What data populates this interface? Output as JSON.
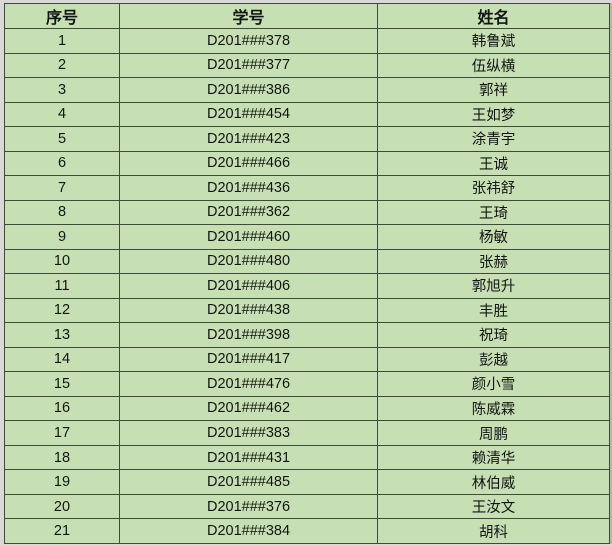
{
  "table": {
    "columns": [
      {
        "key": "no",
        "label": "序号"
      },
      {
        "key": "student_id",
        "label": "学号"
      },
      {
        "key": "name",
        "label": "姓名"
      }
    ],
    "rows": [
      {
        "no": "1",
        "student_id": "D201###378",
        "name": "韩鲁斌"
      },
      {
        "no": "2",
        "student_id": "D201###377",
        "name": "伍纵横"
      },
      {
        "no": "3",
        "student_id": "D201###386",
        "name": "郭祥"
      },
      {
        "no": "4",
        "student_id": "D201###454",
        "name": "王如梦"
      },
      {
        "no": "5",
        "student_id": "D201###423",
        "name": "涂青宇"
      },
      {
        "no": "6",
        "student_id": "D201###466",
        "name": "王诚"
      },
      {
        "no": "7",
        "student_id": "D201###436",
        "name": "张祎舒"
      },
      {
        "no": "8",
        "student_id": "D201###362",
        "name": "王琦"
      },
      {
        "no": "9",
        "student_id": "D201###460",
        "name": "杨敏"
      },
      {
        "no": "10",
        "student_id": "D201###480",
        "name": "张赫"
      },
      {
        "no": "11",
        "student_id": "D201###406",
        "name": "郭旭升"
      },
      {
        "no": "12",
        "student_id": "D201###438",
        "name": "丰胜"
      },
      {
        "no": "13",
        "student_id": "D201###398",
        "name": "祝琦"
      },
      {
        "no": "14",
        "student_id": "D201###417",
        "name": "彭越"
      },
      {
        "no": "15",
        "student_id": "D201###476",
        "name": "颜小雪"
      },
      {
        "no": "16",
        "student_id": "D201###462",
        "name": "陈威霖"
      },
      {
        "no": "17",
        "student_id": "D201###383",
        "name": "周鹏"
      },
      {
        "no": "18",
        "student_id": "D201###431",
        "name": "赖清华"
      },
      {
        "no": "19",
        "student_id": "D201###485",
        "name": "林伯威"
      },
      {
        "no": "20",
        "student_id": "D201###376",
        "name": "王汝文"
      },
      {
        "no": "21",
        "student_id": "D201###384",
        "name": "胡科"
      }
    ],
    "colors": {
      "cell_fill": "#c6e0b4",
      "grid_line": "#3f4a3a",
      "outside_background": "#d9d9d9",
      "text": "#141414"
    }
  }
}
